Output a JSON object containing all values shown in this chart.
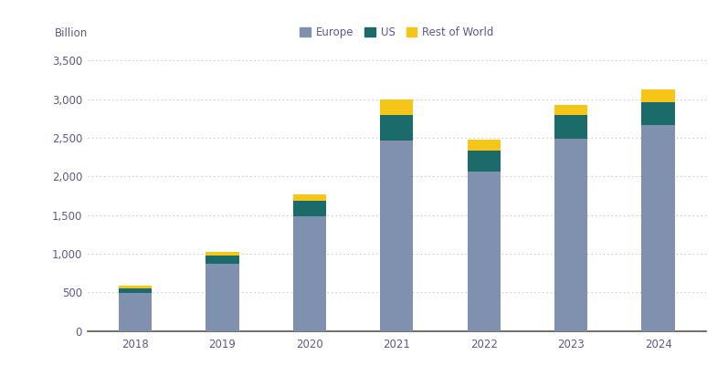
{
  "years": [
    "2018",
    "2019",
    "2020",
    "2021",
    "2022",
    "2023",
    "2024"
  ],
  "europe": [
    490,
    870,
    1480,
    2470,
    2060,
    2490,
    2660
  ],
  "us": [
    55,
    105,
    200,
    330,
    270,
    300,
    295
  ],
  "rest_of_world": [
    45,
    50,
    90,
    200,
    145,
    135,
    175
  ],
  "europe_color": "#8091b0",
  "us_color": "#1b6b6a",
  "row_color": "#f5c518",
  "background_color": "#ffffff",
  "title_label": "Billion",
  "ylabel_ticks": [
    "0",
    "500",
    "1,000",
    "1,500",
    "2,000",
    "2,500",
    "3,000",
    "3,500"
  ],
  "ytick_values": [
    0,
    500,
    1000,
    1500,
    2000,
    2500,
    3000,
    3500
  ],
  "legend_labels": [
    "Europe",
    "US",
    "Rest of World"
  ],
  "grid_color": "#bbbbbb",
  "spine_color": "#555555",
  "label_color": "#5a5a8a",
  "tick_color": "#5a5a8a",
  "bar_width": 0.38
}
